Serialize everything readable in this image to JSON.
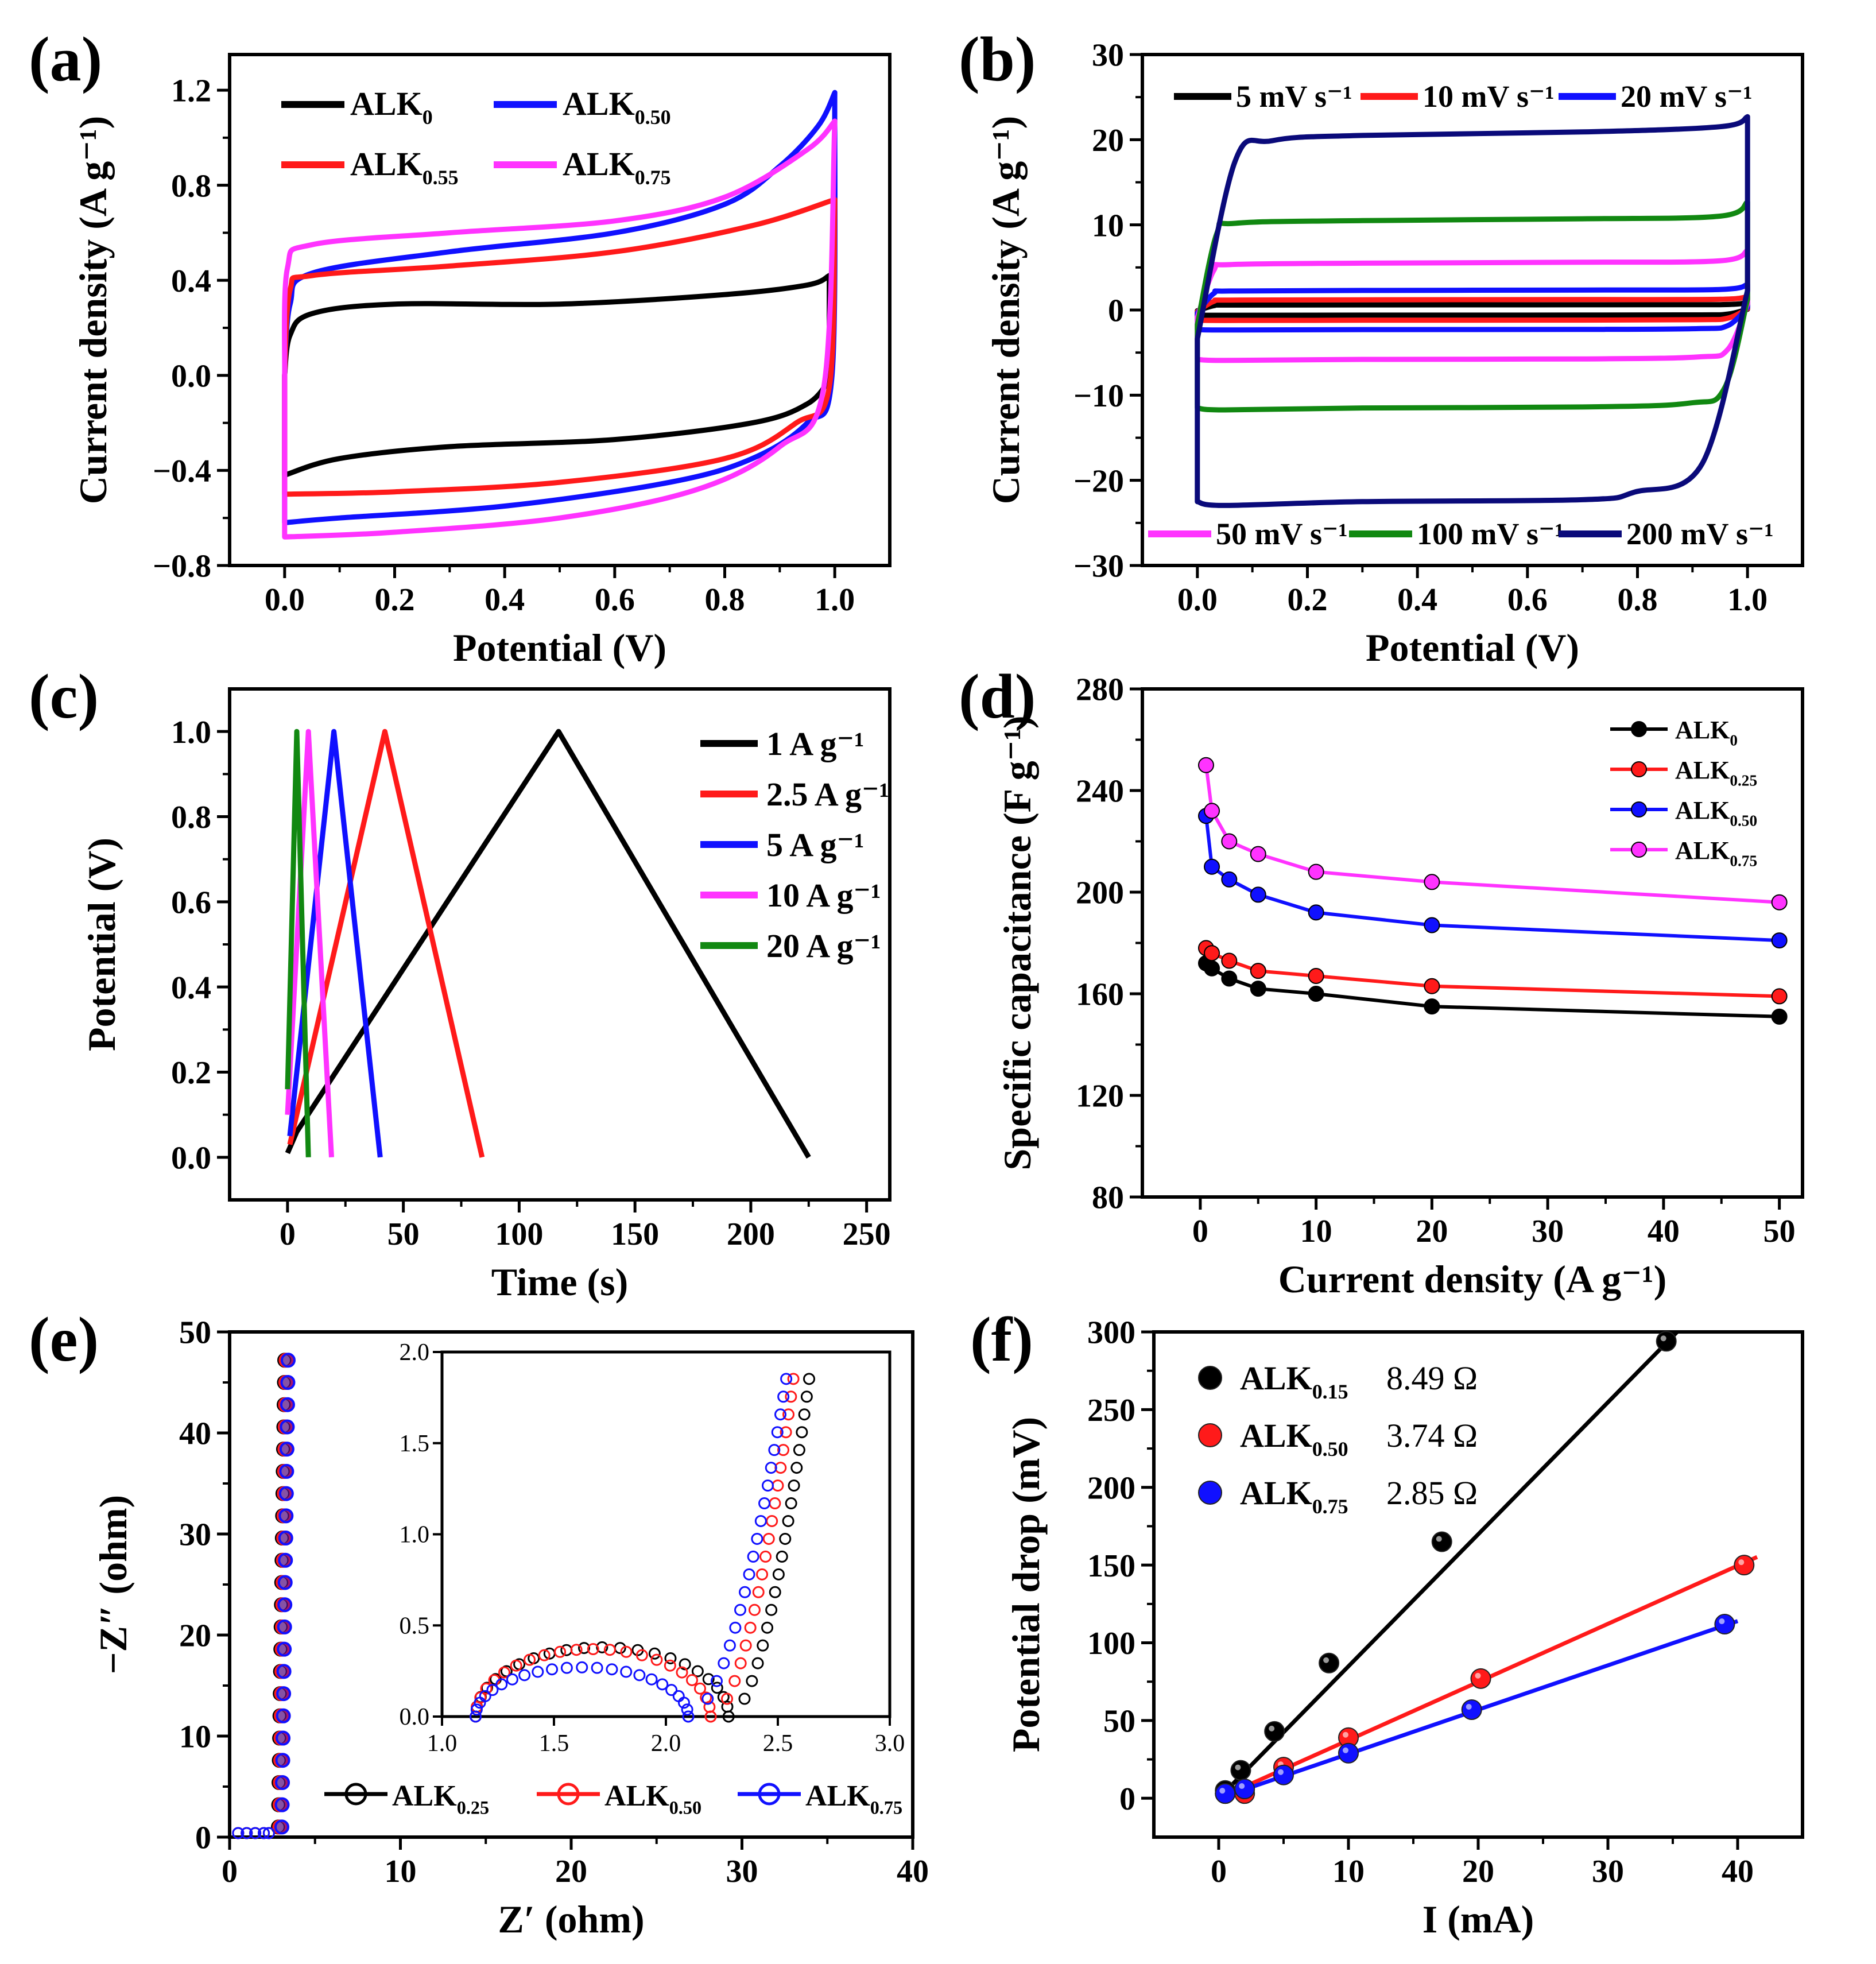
{
  "colors": {
    "black": "#000000",
    "red": "#ff1a1a",
    "blue": "#1010ff",
    "magenta": "#ff33ff",
    "green": "#118811",
    "navy": "#0a0a7a"
  },
  "chart_data": [
    {
      "id": "a",
      "panel_label": "(a)",
      "type": "line",
      "xlabel": "Potential (V)",
      "ylabel": "Current density (A g⁻¹)",
      "xlim": [
        -0.1,
        1.1
      ],
      "ylim": [
        -0.8,
        1.35
      ],
      "xticks": [
        "0.0",
        "0.2",
        "0.4",
        "0.6",
        "0.8",
        "1.0"
      ],
      "yticks": [
        "−0.8",
        "−0.4",
        "0.0",
        "0.4",
        "0.8",
        "1.2"
      ],
      "legend": [
        {
          "main": "ALK",
          "sub": "0"
        },
        {
          "main": "ALK",
          "sub": "0.50"
        },
        {
          "main": "ALK",
          "sub": "0.55"
        },
        {
          "main": "ALK",
          "sub": "0.75"
        }
      ],
      "series": [
        {
          "name": "ALK0",
          "color": "#000000",
          "upper": [
            [
              0,
              0
            ],
            [
              0.01,
              0.17
            ],
            [
              0.05,
              0.26
            ],
            [
              0.2,
              0.3
            ],
            [
              0.5,
              0.3
            ],
            [
              0.8,
              0.34
            ],
            [
              0.95,
              0.38
            ],
            [
              0.99,
              0.42
            ]
          ],
          "lower": [
            [
              0,
              -0.42
            ],
            [
              0.1,
              -0.35
            ],
            [
              0.3,
              -0.3
            ],
            [
              0.6,
              -0.27
            ],
            [
              0.85,
              -0.2
            ],
            [
              0.95,
              -0.12
            ],
            [
              0.99,
              -0.02
            ]
          ]
        },
        {
          "name": "ALK0.50",
          "color": "#1010ff",
          "upper": [
            [
              0,
              0
            ],
            [
              0.01,
              0.3
            ],
            [
              0.05,
              0.43
            ],
            [
              0.3,
              0.52
            ],
            [
              0.6,
              0.6
            ],
            [
              0.8,
              0.72
            ],
            [
              0.9,
              0.88
            ],
            [
              0.97,
              1.05
            ],
            [
              1.0,
              1.19
            ]
          ],
          "lower": [
            [
              0,
              -0.62
            ],
            [
              0.1,
              -0.6
            ],
            [
              0.4,
              -0.55
            ],
            [
              0.7,
              -0.45
            ],
            [
              0.85,
              -0.35
            ],
            [
              0.95,
              -0.2
            ],
            [
              0.995,
              0.0
            ],
            [
              1.0,
              1.19
            ]
          ]
        },
        {
          "name": "ALK0.55",
          "color": "#ff1a1a",
          "upper": [
            [
              0,
              0
            ],
            [
              0.01,
              0.36
            ],
            [
              0.05,
              0.42
            ],
            [
              0.3,
              0.46
            ],
            [
              0.6,
              0.52
            ],
            [
              0.85,
              0.63
            ],
            [
              1.0,
              0.74
            ]
          ],
          "lower": [
            [
              0,
              -0.5
            ],
            [
              0.2,
              -0.49
            ],
            [
              0.5,
              -0.45
            ],
            [
              0.8,
              -0.35
            ],
            [
              0.93,
              -0.2
            ],
            [
              0.99,
              -0.05
            ],
            [
              1.0,
              0.74
            ]
          ]
        },
        {
          "name": "ALK0.75",
          "color": "#ff33ff",
          "upper": [
            [
              0,
              0
            ],
            [
              0.005,
              0.45
            ],
            [
              0.05,
              0.55
            ],
            [
              0.3,
              0.6
            ],
            [
              0.6,
              0.65
            ],
            [
              0.8,
              0.75
            ],
            [
              0.95,
              0.95
            ],
            [
              1.0,
              1.07
            ]
          ],
          "lower": [
            [
              0,
              -0.68
            ],
            [
              0.2,
              -0.66
            ],
            [
              0.5,
              -0.6
            ],
            [
              0.75,
              -0.48
            ],
            [
              0.9,
              -0.3
            ],
            [
              0.98,
              -0.05
            ],
            [
              1.0,
              1.07
            ]
          ]
        }
      ]
    },
    {
      "id": "b",
      "panel_label": "(b)",
      "type": "line",
      "xlabel": "Potential (V)",
      "ylabel": "Current density (A g⁻¹)",
      "xlim": [
        -0.1,
        1.1
      ],
      "ylim": [
        -30,
        30
      ],
      "xticks": [
        "0.0",
        "0.2",
        "0.4",
        "0.6",
        "0.8",
        "1.0"
      ],
      "yticks": [
        "−30",
        "−20",
        "−10",
        "0",
        "10",
        "20",
        "30"
      ],
      "legend_top": [
        "5 mV s⁻¹",
        "10 mV s⁻¹",
        "20 mV s⁻¹"
      ],
      "legend_bottom": [
        "50 mV s⁻¹",
        "100 mV s⁻¹",
        "200 mV s⁻¹"
      ],
      "series": [
        {
          "name": "5 mV s-1",
          "color": "#000000",
          "top": 0.6,
          "bottom": -0.6,
          "endtop": 0.9
        },
        {
          "name": "10 mV s-1",
          "color": "#ff1a1a",
          "top": 1.2,
          "bottom": -1.2,
          "endtop": 1.6
        },
        {
          "name": "20 mV s-1",
          "color": "#1010ff",
          "top": 2.3,
          "bottom": -2.3,
          "endtop": 3.0
        },
        {
          "name": "50 mV s-1",
          "color": "#ff33ff",
          "top": 5.5,
          "bottom": -5.8,
          "endtop": 7.0
        },
        {
          "name": "100 mV s-1",
          "color": "#118811",
          "top": 10.5,
          "bottom": -11.5,
          "endtop": 12.7
        },
        {
          "name": "200 mV s-1",
          "color": "#0a0a7a",
          "top": 20.5,
          "bottom": -22.5,
          "endtop": 22.7
        }
      ]
    },
    {
      "id": "c",
      "panel_label": "(c)",
      "type": "line",
      "xlabel": "Time (s)",
      "ylabel": "Potential (V)",
      "xlim": [
        -25,
        260
      ],
      "ylim": [
        -0.1,
        1.1
      ],
      "xticks": [
        "0",
        "50",
        "100",
        "150",
        "200",
        "250"
      ],
      "yticks": [
        "0.0",
        "0.2",
        "0.4",
        "0.6",
        "0.8",
        "1.0"
      ],
      "legend": [
        "1 A g⁻¹",
        "2.5 A g⁻¹",
        "5 A g⁻¹",
        "10 A g⁻¹",
        "20 A g⁻¹"
      ],
      "series": [
        {
          "name": "1 A g-1",
          "color": "#000000",
          "points": [
            [
              0,
              0.01
            ],
            [
              4,
              0.06
            ],
            [
              117,
              1.0
            ],
            [
              225,
              0.0
            ]
          ]
        },
        {
          "name": "2.5 A g-1",
          "color": "#ff1a1a",
          "points": [
            [
              1,
              0.03
            ],
            [
              42,
              1.0
            ],
            [
              84,
              0.0
            ]
          ]
        },
        {
          "name": "5 A g-1",
          "color": "#1010ff",
          "points": [
            [
              1,
              0.05
            ],
            [
              20,
              1.0
            ],
            [
              40,
              0.0
            ]
          ]
        },
        {
          "name": "10 A g-1",
          "color": "#ff33ff",
          "points": [
            [
              0,
              0.1
            ],
            [
              9,
              1.0
            ],
            [
              19,
              0.0
            ]
          ]
        },
        {
          "name": "20 A g-1",
          "color": "#118811",
          "points": [
            [
              0,
              0.16
            ],
            [
              4,
              1.0
            ],
            [
              9,
              0.0
            ]
          ]
        }
      ]
    },
    {
      "id": "d",
      "panel_label": "(d)",
      "type": "line",
      "xlabel": "Current density (A g⁻¹)",
      "ylabel": "Specific capacitance (F g⁻¹)",
      "xlim": [
        -5,
        52
      ],
      "ylim": [
        80,
        280
      ],
      "xticks": [
        "0",
        "10",
        "20",
        "30",
        "40",
        "50"
      ],
      "yticks": [
        "80",
        "120",
        "160",
        "200",
        "240",
        "280"
      ],
      "x": [
        0.5,
        1,
        2.5,
        5,
        10,
        20,
        50
      ],
      "legend": [
        {
          "main": "ALK",
          "sub": "0"
        },
        {
          "main": "ALK",
          "sub": "0.25"
        },
        {
          "main": "ALK",
          "sub": "0.50"
        },
        {
          "main": "ALK",
          "sub": "0.75"
        }
      ],
      "series": [
        {
          "name": "ALK0",
          "color": "#000000",
          "values": [
            172,
            170,
            166,
            162,
            160,
            155,
            151
          ]
        },
        {
          "name": "ALK0.25",
          "color": "#ff1a1a",
          "values": [
            178,
            176,
            173,
            169,
            167,
            163,
            159
          ]
        },
        {
          "name": "ALK0.50",
          "color": "#1010ff",
          "values": [
            230,
            210,
            205,
            199,
            192,
            187,
            181
          ]
        },
        {
          "name": "ALK0.75",
          "color": "#ff33ff",
          "values": [
            250,
            232,
            220,
            215,
            208,
            204,
            196
          ]
        }
      ]
    },
    {
      "id": "e",
      "panel_label": "(e)",
      "type": "scatter",
      "xlabel": "Z′ (ohm)",
      "ylabel": "−Z″ (ohm)",
      "xlim": [
        0,
        40
      ],
      "ylim": [
        0,
        50
      ],
      "xticks": [
        "0",
        "10",
        "20",
        "30",
        "40"
      ],
      "yticks": [
        "0",
        "10",
        "20",
        "30",
        "40",
        "50"
      ],
      "legend": [
        {
          "main": "ALK",
          "sub": "0.25"
        },
        {
          "main": "ALK",
          "sub": "0.50"
        },
        {
          "main": "ALK",
          "sub": "0.75"
        }
      ],
      "series": [
        {
          "name": "ALK0.25",
          "color": "#000000",
          "rs": 1.15,
          "rct_end": 2.28,
          "arc_h": 0.38,
          "tail_x": 2.65
        },
        {
          "name": "ALK0.50",
          "color": "#ff1a1a",
          "rs": 1.15,
          "rct_end": 2.2,
          "arc_h": 0.37,
          "tail_x": 2.58
        },
        {
          "name": "ALK0.75",
          "color": "#1010ff",
          "rs": 1.15,
          "rct_end": 2.1,
          "arc_h": 0.27,
          "tail_x": 2.55
        }
      ],
      "inset": {
        "xlim": [
          1.0,
          3.0
        ],
        "ylim": [
          0.0,
          2.0
        ],
        "xticks": [
          "1.0",
          "1.5",
          "2.0",
          "2.5",
          "3.0"
        ],
        "yticks": [
          "0.0",
          "0.5",
          "1.0",
          "1.5",
          "2.0"
        ]
      }
    },
    {
      "id": "f",
      "panel_label": "(f)",
      "type": "scatter",
      "xlabel": "I (mA)",
      "ylabel": "Potential drop (mV)",
      "xlim": [
        -5,
        45
      ],
      "ylim": [
        -25,
        300
      ],
      "xticks": [
        "0",
        "10",
        "20",
        "30",
        "40"
      ],
      "yticks": [
        "0",
        "50",
        "100",
        "150",
        "200",
        "250",
        "300"
      ],
      "legend": [
        {
          "main": "ALK",
          "sub": "0.15",
          "value": "8.49 Ω"
        },
        {
          "main": "ALK",
          "sub": "0.50",
          "value": "3.74 Ω"
        },
        {
          "main": "ALK",
          "sub": "0.75",
          "value": "2.85 Ω"
        }
      ],
      "series": [
        {
          "name": "ALK0.15",
          "color": "#000000",
          "resistance": 8.49,
          "x": [
            0.5,
            1.7,
            4.3,
            8.5,
            17.2,
            34.5
          ],
          "y": [
            5,
            18,
            43,
            87,
            165,
            294
          ]
        },
        {
          "name": "ALK0.50",
          "color": "#ff1a1a",
          "resistance": 3.74,
          "x": [
            0.5,
            2,
            5,
            10,
            20.2,
            40.5
          ],
          "y": [
            3,
            3,
            20,
            39,
            77,
            150
          ]
        },
        {
          "name": "ALK0.75",
          "color": "#1010ff",
          "resistance": 2.85,
          "x": [
            0.5,
            2,
            5,
            10,
            19.5,
            39
          ],
          "y": [
            3,
            6,
            15,
            29,
            57,
            112
          ]
        }
      ]
    }
  ]
}
